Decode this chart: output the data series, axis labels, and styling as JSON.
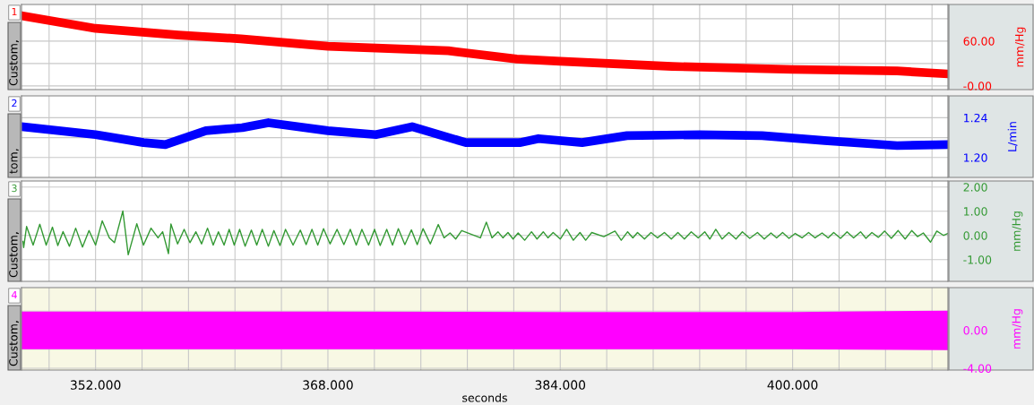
{
  "chart_data": [
    {
      "type": "line",
      "ylabel": "mm/Hg",
      "annotations": [
        "1",
        "Custom,"
      ],
      "tick_labels": "y",
      "grid": true,
      "xlim": [
        346.9,
        410.7
      ],
      "xticks": [
        {
          "value": 348.8,
          "label": null
        },
        {
          "value": 352,
          "label": null
        },
        {
          "value": 355.2,
          "label": null
        },
        {
          "value": 358.4,
          "label": null
        },
        {
          "value": 361.6,
          "label": null
        },
        {
          "value": 364.8,
          "label": null
        },
        {
          "value": 368,
          "label": null
        },
        {
          "value": 371.2,
          "label": null
        },
        {
          "value": 374.4,
          "label": null
        },
        {
          "value": 377.6,
          "label": null
        },
        {
          "value": 380.8,
          "label": null
        },
        {
          "value": 384,
          "label": null
        },
        {
          "value": 387.2,
          "label": null
        },
        {
          "value": 390.4,
          "label": null
        },
        {
          "value": 393.6,
          "label": null
        },
        {
          "value": 396.8,
          "label": null
        },
        {
          "value": 400,
          "label": null
        },
        {
          "value": 403.2,
          "label": null
        },
        {
          "value": 406.4,
          "label": null
        },
        {
          "value": 409.6,
          "label": null
        }
      ],
      "ylim": [
        -5,
        109
      ],
      "yticks": [
        {
          "value": 90,
          "label": null
        },
        {
          "value": 60,
          "label": "60.00"
        },
        {
          "value": 30,
          "label": null
        },
        {
          "value": 0,
          "label": "-0.00"
        }
      ],
      "series": [
        {
          "color": "#ff0000",
          "x": [
            346.9,
            352,
            357.7,
            362,
            368,
            376.3,
            381,
            384,
            391.7,
            400,
            407.2,
            410.7
          ],
          "values": [
            94,
            77,
            68,
            63,
            53,
            47,
            36,
            33,
            26,
            22,
            20,
            16
          ]
        }
      ]
    },
    {
      "type": "line",
      "ylabel": "L/min",
      "annotations": [
        "2",
        "tom,"
      ],
      "tick_labels": "y",
      "grid": true,
      "xlim": [
        346.9,
        410.7
      ],
      "xticks": [
        {
          "value": 348.8,
          "label": null
        },
        {
          "value": 352,
          "label": null
        },
        {
          "value": 355.2,
          "label": null
        },
        {
          "value": 358.4,
          "label": null
        },
        {
          "value": 361.6,
          "label": null
        },
        {
          "value": 364.8,
          "label": null
        },
        {
          "value": 368,
          "label": null
        },
        {
          "value": 371.2,
          "label": null
        },
        {
          "value": 374.4,
          "label": null
        },
        {
          "value": 377.6,
          "label": null
        },
        {
          "value": 380.8,
          "label": null
        },
        {
          "value": 384,
          "label": null
        },
        {
          "value": 387.2,
          "label": null
        },
        {
          "value": 390.4,
          "label": null
        },
        {
          "value": 393.6,
          "label": null
        },
        {
          "value": 396.8,
          "label": null
        },
        {
          "value": 400,
          "label": null
        },
        {
          "value": 403.2,
          "label": null
        },
        {
          "value": 406.4,
          "label": null
        },
        {
          "value": 409.6,
          "label": null
        }
      ],
      "ylim": [
        1.18,
        1.262
      ],
      "yticks": [
        {
          "value": 1.24,
          "label": "1.24"
        },
        {
          "value": 1.22,
          "label": null
        },
        {
          "value": 1.2,
          "label": "1.20"
        }
      ],
      "series": [
        {
          "color": "#0000ff",
          "x": [
            346.9,
            352,
            355.3,
            356.8,
            359.6,
            362.1,
            363.9,
            368,
            371.3,
            373.8,
            377.5,
            381.2,
            382.5,
            385.5,
            388.6,
            393.6,
            397.9,
            402.2,
            407.2,
            410.7
          ],
          "values": [
            1.231,
            1.223,
            1.215,
            1.213,
            1.227,
            1.23,
            1.235,
            1.227,
            1.223,
            1.231,
            1.215,
            1.215,
            1.219,
            1.215,
            1.222,
            1.223,
            1.222,
            1.217,
            1.212,
            1.213
          ]
        }
      ]
    },
    {
      "type": "line",
      "ylabel": "mm/Hg",
      "annotations": [
        "3",
        "Custom,"
      ],
      "tick_labels": "y",
      "grid": true,
      "xlim": [
        346.9,
        410.7
      ],
      "xticks": [
        {
          "value": 348.8,
          "label": null
        },
        {
          "value": 352,
          "label": null
        },
        {
          "value": 355.2,
          "label": null
        },
        {
          "value": 358.4,
          "label": null
        },
        {
          "value": 361.6,
          "label": null
        },
        {
          "value": 364.8,
          "label": null
        },
        {
          "value": 368,
          "label": null
        },
        {
          "value": 371.2,
          "label": null
        },
        {
          "value": 374.4,
          "label": null
        },
        {
          "value": 377.6,
          "label": null
        },
        {
          "value": 380.8,
          "label": null
        },
        {
          "value": 384,
          "label": null
        },
        {
          "value": 387.2,
          "label": null
        },
        {
          "value": 390.4,
          "label": null
        },
        {
          "value": 393.6,
          "label": null
        },
        {
          "value": 396.8,
          "label": null
        },
        {
          "value": 400,
          "label": null
        },
        {
          "value": 403.2,
          "label": null
        },
        {
          "value": 406.4,
          "label": null
        },
        {
          "value": 409.6,
          "label": null
        }
      ],
      "ylim": [
        -1.9,
        2.25
      ],
      "yticks": [
        {
          "value": 2,
          "label": "2.00"
        },
        {
          "value": 1,
          "label": "1.00"
        },
        {
          "value": 0,
          "label": "0.00"
        },
        {
          "value": -1,
          "label": "-1.00"
        }
      ],
      "series": [
        {
          "color": "#339933",
          "x": [
            347.0,
            347.05,
            347.25,
            347.7,
            348.16,
            348.6,
            349.03,
            349.4,
            349.76,
            350.2,
            350.63,
            351.1,
            351.55,
            352.0,
            352.46,
            352.95,
            353.3,
            353.88,
            354.25,
            354.84,
            355.3,
            355.82,
            356.3,
            356.62,
            357.02,
            357.19,
            357.65,
            358.1,
            358.5,
            358.91,
            359.3,
            359.71,
            360.1,
            360.46,
            360.85,
            361.2,
            361.55,
            361.92,
            362.3,
            362.73,
            363.1,
            363.48,
            363.9,
            364.28,
            364.7,
            365.08,
            365.6,
            366.1,
            366.5,
            366.9,
            367.3,
            367.7,
            368.15,
            368.63,
            369.1,
            369.54,
            369.95,
            370.34,
            370.8,
            371.21,
            371.6,
            372.05,
            372.45,
            372.85,
            373.3,
            373.75,
            374.15,
            374.55,
            375.05,
            375.6,
            376.0,
            376.41,
            376.8,
            377.21,
            378.5,
            378.91,
            379.3,
            379.71,
            380.05,
            380.4,
            380.75,
            381.1,
            381.55,
            382.02,
            382.4,
            382.83,
            383.15,
            383.51,
            384.0,
            384.44,
            384.9,
            385.36,
            385.75,
            386.17,
            387.0,
            387.77,
            388.2,
            388.64,
            389.0,
            389.32,
            389.8,
            390.25,
            390.7,
            391.17,
            391.65,
            392.1,
            392.55,
            393.02,
            393.5,
            393.95,
            394.3,
            394.71,
            395.15,
            395.61,
            396.1,
            396.54,
            397.05,
            397.58,
            398.05,
            398.51,
            398.9,
            399.31,
            399.75,
            400.18,
            400.65,
            401.1,
            401.55,
            402.03,
            402.45,
            402.83,
            403.3,
            403.75,
            404.2,
            404.68,
            405.05,
            405.46,
            405.9,
            406.34,
            406.8,
            407.27,
            407.75,
            408.2,
            408.6,
            409.0,
            409.5,
            409.93,
            410.4,
            410.7
          ],
          "values": [
            -0.25,
            -0.5,
            0.37,
            -0.4,
            0.46,
            -0.4,
            0.34,
            -0.42,
            0.16,
            -0.45,
            0.3,
            -0.48,
            0.2,
            -0.4,
            0.6,
            -0.1,
            -0.3,
            1.01,
            -0.8,
            0.48,
            -0.4,
            0.3,
            -0.1,
            0.15,
            -0.75,
            0.47,
            -0.35,
            0.25,
            -0.3,
            0.15,
            -0.35,
            0.3,
            -0.4,
            0.15,
            -0.4,
            0.25,
            -0.4,
            0.25,
            -0.45,
            0.22,
            -0.4,
            0.25,
            -0.45,
            0.2,
            -0.42,
            0.25,
            -0.4,
            0.22,
            -0.38,
            0.25,
            -0.4,
            0.28,
            -0.35,
            0.25,
            -0.38,
            0.25,
            -0.4,
            0.25,
            -0.4,
            0.25,
            -0.42,
            0.25,
            -0.4,
            0.28,
            -0.38,
            0.23,
            -0.38,
            0.28,
            -0.35,
            0.45,
            -0.1,
            0.1,
            -0.15,
            0.2,
            -0.1,
            0.55,
            -0.1,
            0.15,
            -0.1,
            0.12,
            -0.15,
            0.1,
            -0.2,
            0.15,
            -0.15,
            0.15,
            -0.1,
            0.12,
            -0.15,
            0.25,
            -0.2,
            0.12,
            -0.2,
            0.12,
            -0.05,
            0.18,
            -0.2,
            0.15,
            -0.1,
            0.12,
            -0.15,
            0.12,
            -0.1,
            0.12,
            -0.15,
            0.12,
            -0.15,
            0.15,
            -0.1,
            0.15,
            -0.15,
            0.25,
            -0.15,
            0.12,
            -0.15,
            0.15,
            -0.12,
            0.12,
            -0.15,
            0.1,
            -0.1,
            0.12,
            -0.12,
            0.08,
            -0.1,
            0.12,
            -0.1,
            0.1,
            -0.1,
            0.12,
            -0.12,
            0.15,
            -0.1,
            0.15,
            -0.12,
            0.12,
            -0.08,
            0.18,
            -0.12,
            0.2,
            -0.15,
            0.2,
            -0.05,
            0.1,
            -0.28,
            0.18,
            0.0,
            0.08
          ]
        }
      ]
    },
    {
      "type": "line",
      "ylabel": "mm/Hg",
      "xlabel": "seconds",
      "annotations": [
        "4",
        "Custom,"
      ],
      "grid": true,
      "xlim": [
        346.9,
        410.7
      ],
      "xticks": [
        {
          "value": 348.8,
          "label": null
        },
        {
          "value": 352,
          "label": "352.000"
        },
        {
          "value": 355.2,
          "label": null
        },
        {
          "value": 358.4,
          "label": null
        },
        {
          "value": 361.6,
          "label": null
        },
        {
          "value": 364.8,
          "label": null
        },
        {
          "value": 368,
          "label": "368.000"
        },
        {
          "value": 371.2,
          "label": null
        },
        {
          "value": 374.4,
          "label": null
        },
        {
          "value": 377.6,
          "label": null
        },
        {
          "value": 380.8,
          "label": null
        },
        {
          "value": 384,
          "label": "384.000"
        },
        {
          "value": 387.2,
          "label": null
        },
        {
          "value": 390.4,
          "label": null
        },
        {
          "value": 393.6,
          "label": null
        },
        {
          "value": 396.8,
          "label": null
        },
        {
          "value": 400,
          "label": "400.000"
        },
        {
          "value": 403.2,
          "label": null
        },
        {
          "value": 406.4,
          "label": null
        },
        {
          "value": 409.6,
          "label": null
        }
      ],
      "ylim": [
        -4.19,
        4.47
      ],
      "yticks": [
        {
          "value": 2,
          "label": null
        },
        {
          "value": 0,
          "label": "0.00"
        },
        {
          "value": -2,
          "label": null
        },
        {
          "value": -4,
          "label": "-4.00"
        }
      ],
      "series": [
        {
          "color": "#ff00ff",
          "x": [
            346.9,
            368,
            384,
            400,
            410.7
          ],
          "values": [
            0,
            0,
            0,
            0,
            0
          ],
          "lower": [
            -2.0,
            -2.0,
            -2.0,
            -2.0,
            -2.1
          ],
          "upper": [
            1.95,
            1.95,
            1.9,
            1.9,
            2.05
          ]
        }
      ]
    }
  ]
}
